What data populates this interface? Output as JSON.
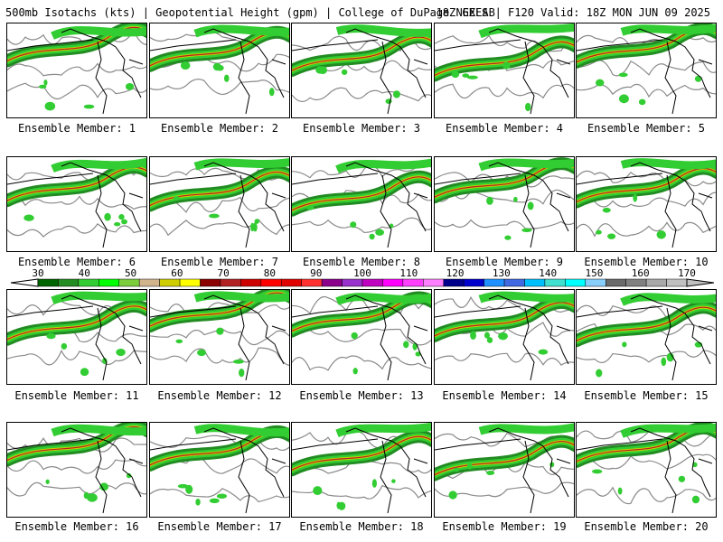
{
  "header": {
    "left": "500mb Isotachs (kts) | Geopotential Height (gpm) | College of DuPage NEXLAB",
    "right": "18Z GEFS | F120 Valid: 18Z MON JUN 09 2025"
  },
  "members": [
    "Ensemble Member: 1",
    "Ensemble Member: 2",
    "Ensemble Member: 3",
    "Ensemble Member: 4",
    "Ensemble Member: 5",
    "Ensemble Member: 6",
    "Ensemble Member: 7",
    "Ensemble Member: 8",
    "Ensemble Member: 9",
    "Ensemble Member: 10",
    "Ensemble Member: 11",
    "Ensemble Member: 12",
    "Ensemble Member: 13",
    "Ensemble Member: 14",
    "Ensemble Member: 15",
    "Ensemble Member: 16",
    "Ensemble Member: 17",
    "Ensemble Member: 18",
    "Ensemble Member: 19",
    "Ensemble Member: 20"
  ],
  "colorbar": {
    "labels": [
      "30",
      "40",
      "50",
      "60",
      "70",
      "80",
      "90",
      "100",
      "110",
      "120",
      "130",
      "140",
      "150",
      "160",
      "170"
    ],
    "colors": [
      "#006400",
      "#228b22",
      "#32cd32",
      "#00ff00",
      "#7ccd3c",
      "#d2b48c",
      "#cdcd00",
      "#ffff00",
      "#8b0000",
      "#b22222",
      "#cd0000",
      "#ff0000",
      "#e00000",
      "#ff3030",
      "#8b008b",
      "#9932cc",
      "#c000c0",
      "#ff00ff",
      "#ff40ff",
      "#ff80ff",
      "#00008b",
      "#0000cd",
      "#1e90ff",
      "#4169e1",
      "#00bfff",
      "#40e0d0",
      "#00ffff",
      "#87cefa",
      "#696969",
      "#808080",
      "#a9a9a9",
      "#c0c0c0"
    ]
  }
}
